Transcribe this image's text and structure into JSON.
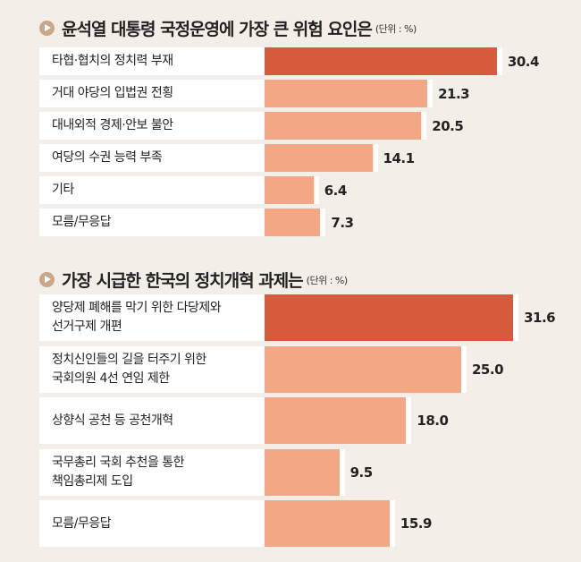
{
  "chart_data": [
    {
      "type": "bar",
      "orientation": "horizontal",
      "title": "윤석열 대통령 국정운영에 가장 큰 위험 요인은",
      "unit": "(단위 : %)",
      "categories": [
        "타협·협치의 정치력 부재",
        "거대 야당의 입법권 전횡",
        "대내외적 경제·안보 불안",
        "여당의 수권 능력 부족",
        "기타",
        "모름/무응답"
      ],
      "values": [
        30.4,
        21.3,
        20.5,
        14.1,
        6.4,
        7.3
      ],
      "value_labels": [
        "30.4",
        "21.3",
        "20.5",
        "14.1",
        "6.4",
        "7.3"
      ],
      "highlight_index": 0
    },
    {
      "type": "bar",
      "orientation": "horizontal",
      "title": "가장 시급한 한국의 정치개혁 과제는",
      "unit": "(단위 : %)",
      "categories": [
        "양당제 폐해를 막기 위한 다당제와\n선거구제 개편",
        "정치신인들의 길을 터주기 위한\n국회의원 4선 연임 제한",
        "상향식 공천 등 공천개혁",
        "국무총리 국회 추천을 통한\n책임총리제 도입",
        "모름/무응답"
      ],
      "values": [
        31.6,
        25.0,
        18.0,
        9.5,
        15.9
      ],
      "value_labels": [
        "31.6",
        "25.0",
        "18.0",
        "9.5",
        "15.9"
      ],
      "highlight_index": 0
    }
  ],
  "colors": {
    "highlight": "#d65a3c",
    "normal": "#f3a784",
    "background": "#f3eee8"
  }
}
